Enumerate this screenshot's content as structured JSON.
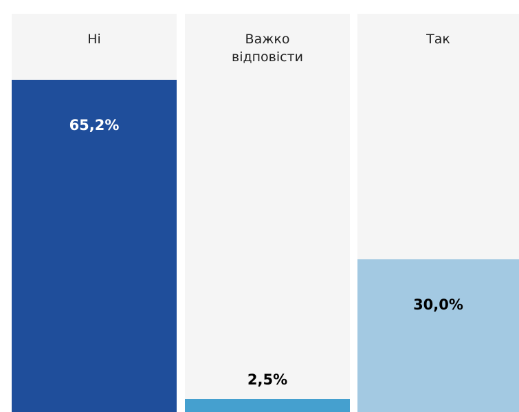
{
  "chart_data": {
    "type": "bar",
    "categories": [
      "Ні",
      "Важко відповісти",
      "Так"
    ],
    "values": [
      65.2,
      2.5,
      30.0
    ],
    "value_labels": [
      "65,2%",
      "2,5%",
      "30,0%"
    ],
    "colors": [
      "#1f4e9b",
      "#45a0cf",
      "#a3c9e2"
    ]
  }
}
